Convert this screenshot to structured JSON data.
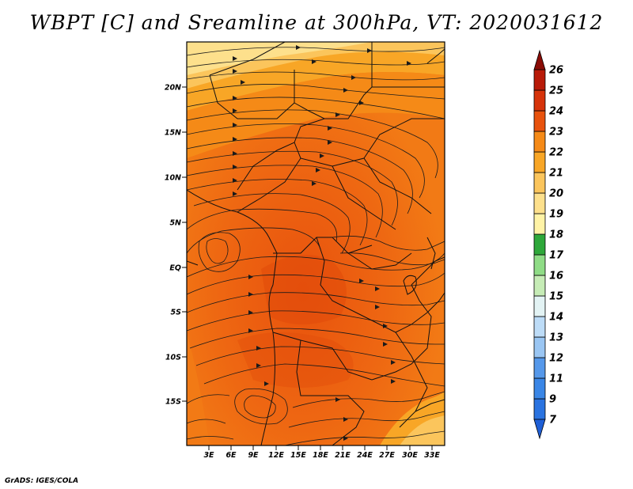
{
  "title": "WBPT [C] and Sreamline at 300hPa, VT: 2020031612",
  "credit": "GrADS: IGES/COLA",
  "map": {
    "variable": "WBPT",
    "units": "C",
    "level": "300hPa",
    "valid_time": "2020031612",
    "lat_labels": [
      "20N",
      "15N",
      "10N",
      "5N",
      "EQ",
      "5S",
      "10S",
      "15S"
    ],
    "lon_labels": [
      "3E",
      "6E",
      "9E",
      "12E",
      "15E",
      "18E",
      "21E",
      "24E",
      "27E",
      "30E",
      "33E"
    ]
  },
  "colorbar": {
    "labels": [
      "7",
      "9",
      "11",
      "12",
      "13",
      "14",
      "15",
      "16",
      "17",
      "18",
      "19",
      "20",
      "21",
      "22",
      "23",
      "24",
      "25",
      "26"
    ],
    "colors": [
      "#1f5fd6",
      "#2a73e0",
      "#3a86e6",
      "#5598ea",
      "#74acef",
      "#9ac6f3",
      "#bddcf7",
      "#e3f3f4",
      "#c6ecb6",
      "#8fdc86",
      "#55c252",
      "#2ea83a",
      "#fff3a6",
      "#fde08c",
      "#fbc55c",
      "#f8a626",
      "#f58a17",
      "#f16e12",
      "#e8520d",
      "#d6330a",
      "#b81a08",
      "#8a0c06"
    ]
  }
}
